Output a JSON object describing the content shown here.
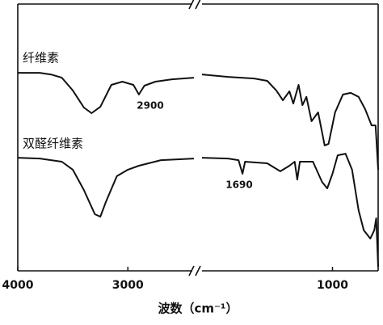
{
  "chart_data": {
    "type": "line",
    "x_label": "波数（cm⁻¹）",
    "xlim": [
      4000,
      650
    ],
    "x_break": [
      2400,
      2000
    ],
    "xticks": [
      4000,
      3000,
      1000
    ],
    "ylim": [
      0,
      100
    ],
    "series": [
      {
        "name": "纤维素",
        "color": "#111111",
        "x": [
          4000,
          3800,
          3700,
          3600,
          3500,
          3400,
          3330,
          3250,
          3150,
          3050,
          2950,
          2900,
          2850,
          2750,
          2600,
          2400,
          null,
          2000,
          1800,
          1600,
          1500,
          1430,
          1380,
          1330,
          1300,
          1260,
          1230,
          1200,
          1160,
          1110,
          1060,
          1030,
          980,
          920,
          860,
          800,
          750,
          700,
          670,
          650
        ],
        "values": [
          74.2,
          74.2,
          73.6,
          72.4,
          67.6,
          61.2,
          59.1,
          61.5,
          69.7,
          70.9,
          69.7,
          66.1,
          69.4,
          70.9,
          71.8,
          72.4,
          null,
          73.6,
          72.7,
          72.1,
          71.2,
          67.6,
          63.9,
          67.3,
          62.7,
          69.7,
          62.1,
          65.2,
          56.1,
          59.4,
          47.0,
          47.6,
          59.4,
          66.1,
          66.7,
          65.2,
          60.6,
          54.5,
          54.5,
          37.9
        ]
      },
      {
        "name": "双醛纤维素",
        "color": "#111111",
        "x": [
          4000,
          3800,
          3600,
          3500,
          3400,
          3300,
          3250,
          3200,
          3100,
          3000,
          2900,
          2700,
          2400,
          null,
          2000,
          1800,
          1720,
          1690,
          1670,
          1500,
          1400,
          1330,
          1290,
          1270,
          1250,
          1150,
          1080,
          1040,
          1000,
          960,
          900,
          850,
          800,
          760,
          710,
          680,
          665,
          650
        ],
        "values": [
          42.4,
          42.1,
          40.9,
          37.9,
          30.3,
          21.2,
          20.3,
          25.8,
          35.5,
          37.9,
          39.4,
          41.5,
          42.1,
          null,
          42.4,
          42.1,
          41.5,
          36.4,
          40.9,
          40.3,
          37.3,
          39.4,
          40.9,
          34.2,
          40.9,
          40.9,
          33.3,
          30.9,
          36.4,
          43.3,
          43.9,
          37.9,
          22.7,
          15.2,
          12.1,
          15.2,
          19.7,
          1.5
        ]
      }
    ],
    "annotations": [
      {
        "text": "2900"
      },
      {
        "text": "1690"
      }
    ]
  }
}
